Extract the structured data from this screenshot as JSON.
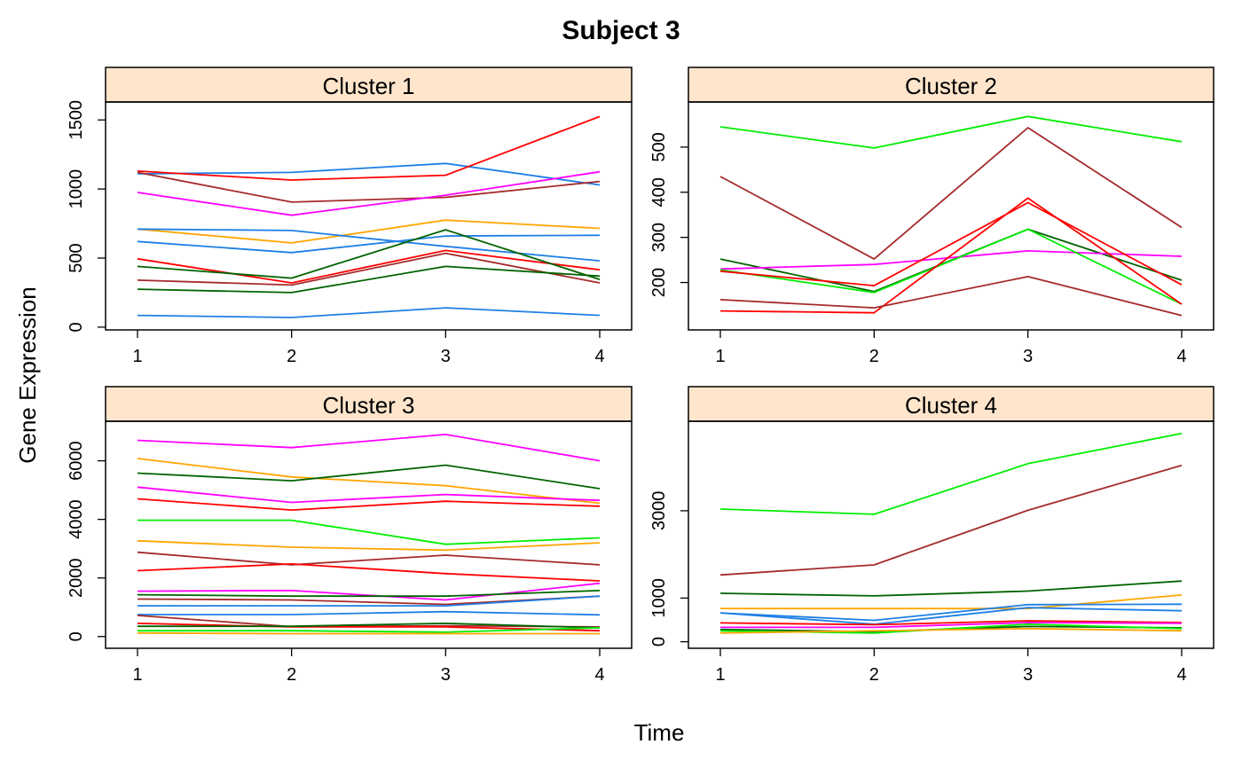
{
  "figure": {
    "title": "Subject 3",
    "xlabel": "Time",
    "ylabel": "Gene Expression"
  },
  "colors": {
    "strip_fill": "#FFE5CC",
    "frame": "#000000",
    "blue": "#1E7FE6",
    "red": "#FF0000",
    "magenta": "#FF00FF",
    "brown": "#A52A2A",
    "orange": "#FFA500",
    "darkgreen": "#006400",
    "green": "#00EE00"
  },
  "chart_data": [
    {
      "type": "line",
      "title": "Cluster 1",
      "x": [
        1,
        2,
        3,
        4
      ],
      "xticks": [
        "1",
        "2",
        "3",
        "4"
      ],
      "yticks": [
        0,
        500,
        1000,
        1500
      ],
      "ylim": [
        -20,
        1630
      ],
      "series": [
        {
          "color": "#1E7FE6",
          "values": [
            1110,
            1120,
            1185,
            1030
          ]
        },
        {
          "color": "#FF0000",
          "values": [
            1130,
            1065,
            1100,
            1525
          ]
        },
        {
          "color": "#A52A2A",
          "values": [
            1120,
            905,
            940,
            1055
          ]
        },
        {
          "color": "#FF00FF",
          "values": [
            975,
            810,
            955,
            1125
          ]
        },
        {
          "color": "#FFA500",
          "values": [
            710,
            610,
            775,
            715
          ]
        },
        {
          "color": "#1E7FE6",
          "values": [
            710,
            700,
            585,
            480
          ]
        },
        {
          "color": "#1E7FE6",
          "values": [
            620,
            540,
            660,
            665
          ]
        },
        {
          "color": "#FF0000",
          "values": [
            495,
            320,
            555,
            415
          ]
        },
        {
          "color": "#006400",
          "values": [
            440,
            355,
            705,
            345
          ]
        },
        {
          "color": "#A52A2A",
          "values": [
            340,
            305,
            535,
            320
          ]
        },
        {
          "color": "#006400",
          "values": [
            275,
            250,
            440,
            370
          ]
        },
        {
          "color": "#1E7FE6",
          "values": [
            85,
            70,
            140,
            85
          ]
        }
      ]
    },
    {
      "type": "line",
      "title": "Cluster 2",
      "x": [
        1,
        2,
        3,
        4
      ],
      "xticks": [
        "1",
        "2",
        "3",
        "4"
      ],
      "yticks": [
        200,
        300,
        400,
        500
      ],
      "ylim": [
        95,
        600
      ],
      "series": [
        {
          "color": "#00EE00",
          "values": [
            545,
            498,
            568,
            512
          ]
        },
        {
          "color": "#A52A2A",
          "values": [
            435,
            252,
            543,
            322
          ]
        },
        {
          "color": "#006400",
          "values": [
            252,
            180,
            318,
            205
          ]
        },
        {
          "color": "#FF00FF",
          "values": [
            230,
            240,
            270,
            258
          ]
        },
        {
          "color": "#00EE00",
          "values": [
            228,
            178,
            318,
            152
          ]
        },
        {
          "color": "#FF0000",
          "values": [
            225,
            193,
            377,
            195
          ]
        },
        {
          "color": "#FF0000",
          "values": [
            137,
            133,
            387,
            152
          ]
        },
        {
          "color": "#A52A2A",
          "values": [
            162,
            144,
            213,
            127
          ]
        }
      ]
    },
    {
      "type": "line",
      "title": "Cluster 3",
      "x": [
        1,
        2,
        3,
        4
      ],
      "xticks": [
        "1",
        "2",
        "3",
        "4"
      ],
      "yticks": [
        0,
        2000,
        4000,
        6000
      ],
      "ylim": [
        -400,
        7350
      ],
      "series": [
        {
          "color": "#FF00FF",
          "values": [
            6700,
            6450,
            6900,
            6000
          ]
        },
        {
          "color": "#FFA500",
          "values": [
            6080,
            5450,
            5150,
            4550
          ]
        },
        {
          "color": "#006400",
          "values": [
            5580,
            5320,
            5850,
            5050
          ]
        },
        {
          "color": "#FF00FF",
          "values": [
            5100,
            4580,
            4850,
            4650
          ]
        },
        {
          "color": "#FF0000",
          "values": [
            4700,
            4320,
            4620,
            4450
          ]
        },
        {
          "color": "#00EE00",
          "values": [
            3970,
            3970,
            3150,
            3370
          ]
        },
        {
          "color": "#FFA500",
          "values": [
            3270,
            3050,
            2950,
            3200
          ]
        },
        {
          "color": "#A52A2A",
          "values": [
            2880,
            2450,
            2780,
            2450
          ]
        },
        {
          "color": "#FF0000",
          "values": [
            2250,
            2480,
            2150,
            1900
          ]
        },
        {
          "color": "#FF00FF",
          "values": [
            1550,
            1570,
            1250,
            1820
          ]
        },
        {
          "color": "#006400",
          "values": [
            1430,
            1380,
            1380,
            1570
          ]
        },
        {
          "color": "#A52A2A",
          "values": [
            1280,
            1250,
            1100,
            1380
          ]
        },
        {
          "color": "#1E7FE6",
          "values": [
            1050,
            1050,
            1050,
            1380
          ]
        },
        {
          "color": "#1E7FE6",
          "values": [
            750,
            750,
            850,
            740
          ]
        },
        {
          "color": "#A52A2A",
          "values": [
            720,
            340,
            370,
            330
          ]
        },
        {
          "color": "#FF0000",
          "values": [
            450,
            330,
            330,
            200
          ]
        },
        {
          "color": "#006400",
          "values": [
            350,
            350,
            450,
            300
          ]
        },
        {
          "color": "#00EE00",
          "values": [
            200,
            200,
            150,
            300
          ]
        },
        {
          "color": "#FFA500",
          "values": [
            120,
            100,
            100,
            100
          ]
        }
      ]
    },
    {
      "type": "line",
      "title": "Cluster 4",
      "x": [
        1,
        2,
        3,
        4
      ],
      "xticks": [
        "1",
        "2",
        "3",
        "4"
      ],
      "yticks": [
        0,
        1000,
        3000
      ],
      "ylim": [
        -150,
        5050
      ],
      "series": [
        {
          "color": "#00EE00",
          "values": [
            3040,
            2920,
            4080,
            4770
          ]
        },
        {
          "color": "#A52A2A",
          "values": [
            1530,
            1760,
            3010,
            4040
          ]
        },
        {
          "color": "#006400",
          "values": [
            1110,
            1050,
            1160,
            1390
          ]
        },
        {
          "color": "#FFA500",
          "values": [
            760,
            760,
            760,
            1070
          ]
        },
        {
          "color": "#1E7FE6",
          "values": [
            660,
            490,
            850,
            860
          ]
        },
        {
          "color": "#1E7FE6",
          "values": [
            660,
            400,
            780,
            710
          ]
        },
        {
          "color": "#FF0000",
          "values": [
            430,
            390,
            480,
            440
          ]
        },
        {
          "color": "#FF00FF",
          "values": [
            330,
            330,
            440,
            420
          ]
        },
        {
          "color": "#006400",
          "values": [
            280,
            230,
            350,
            320
          ]
        },
        {
          "color": "#00EE00",
          "values": [
            250,
            200,
            400,
            300
          ]
        },
        {
          "color": "#FFA500",
          "values": [
            200,
            250,
            300,
            250
          ]
        }
      ]
    }
  ]
}
